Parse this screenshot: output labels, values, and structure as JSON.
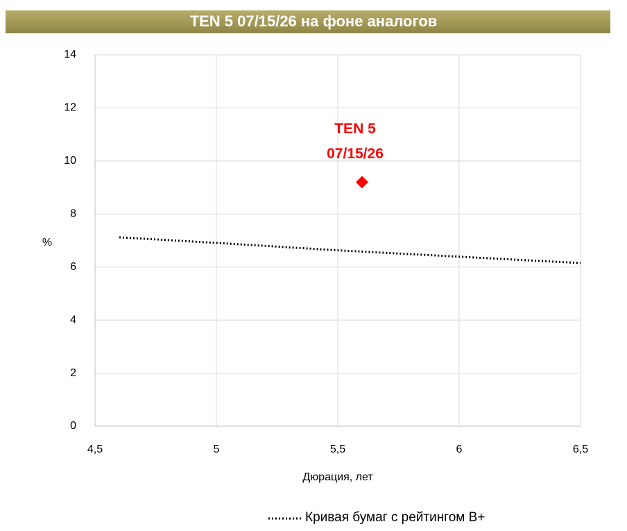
{
  "chart_data": {
    "type": "scatter",
    "title": "TEN 5 07/15/26 на фоне аналогов",
    "x_label": "Дюрация, лет",
    "y_label": "%",
    "xlim": [
      4.5,
      6.5
    ],
    "xticks": [
      {
        "value": 4.5,
        "label": "4,5"
      },
      5,
      {
        "value": 5.5,
        "label": "5,5"
      },
      6,
      {
        "value": 6.5,
        "label": "6,5"
      }
    ],
    "ylim": [
      0,
      14
    ],
    "yticks": [
      0,
      2,
      4,
      6,
      8,
      10,
      12,
      14
    ],
    "grid": true,
    "series": [
      {
        "name": "Кривая бумаг с рейтингом B+",
        "color": "#000000",
        "style": "dotted",
        "x": [
          4.6,
          5,
          5.5,
          6,
          6.5
        ],
        "values": [
          7.12,
          6.91,
          6.63,
          6.39,
          6.15
        ]
      }
    ],
    "points": [
      {
        "x": 5.6,
        "y": 9.2,
        "color": "#ff0000",
        "label": [
          "TEN 5",
          "07/15/26"
        ]
      }
    ],
    "legend": "bottom"
  }
}
